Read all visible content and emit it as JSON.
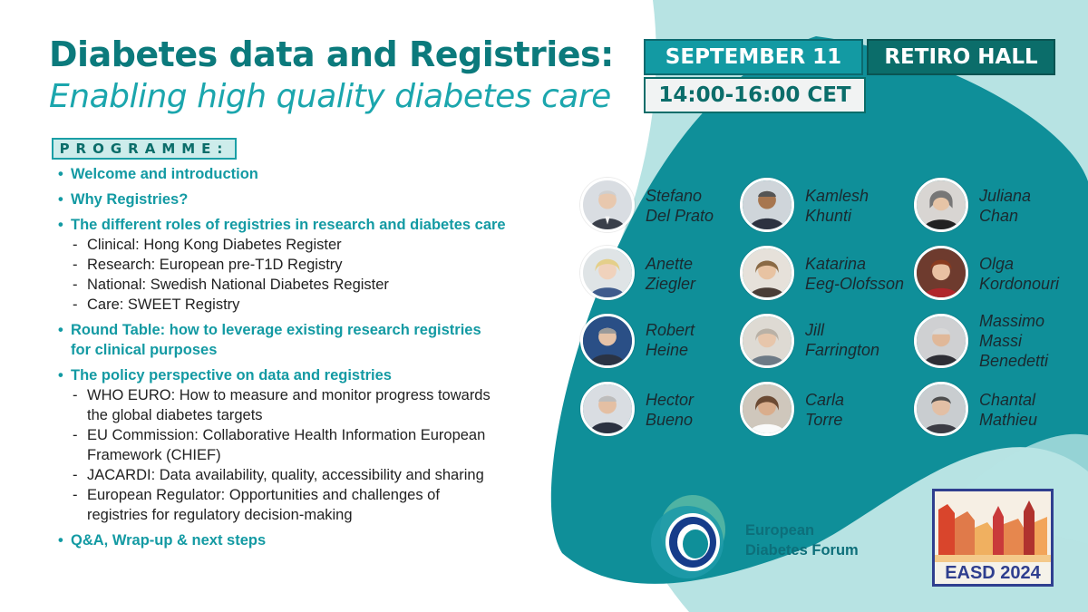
{
  "title": {
    "line1": "Diabetes data and Registries:",
    "line2": "Enabling high quality diabetes care"
  },
  "event": {
    "date": "SEPTEMBER 11",
    "hall": "RETIRO HALL",
    "time": "14:00-16:00 CET"
  },
  "programme": {
    "label": "PROGRAMME:",
    "items": [
      {
        "text": "Welcome and introduction",
        "subs": []
      },
      {
        "text": "Why Registries?",
        "subs": []
      },
      {
        "text": "The different roles of registries in research and diabetes care",
        "subs": [
          "Clinical: Hong Kong Diabetes Register",
          "Research: European pre-T1D Registry",
          "National: Swedish National Diabetes Register",
          "Care: SWEET Registry"
        ]
      },
      {
        "text": "Round Table: how to leverage existing research registries",
        "text2": "for clinical purposes",
        "subs": []
      },
      {
        "text": "The policy perspective on data and registries",
        "subs": [
          "WHO EURO: How to measure and monitor progress towards",
          "the global diabetes targets",
          "EU Commission: Collaborative Health Information European",
          "Framework (CHIEF)",
          "JACARDI: Data availability, quality, accessibility and sharing",
          "European Regulator: Opportunities and challenges of",
          "registries for regulatory decision-making"
        ]
      },
      {
        "text": "Q&A, Wrap-up & next steps",
        "subs": []
      }
    ]
  },
  "speakers": [
    {
      "line1": "Stefano",
      "line2": "Del Prato"
    },
    {
      "line1": "Kamlesh",
      "line2": "Khunti"
    },
    {
      "line1": "Juliana",
      "line2": "Chan"
    },
    {
      "line1": "Anette",
      "line2": "Ziegler"
    },
    {
      "line1": "Katarina",
      "line2": "Eeg-Olofsson"
    },
    {
      "line1": "Olga",
      "line2": "Kordonouri"
    },
    {
      "line1": "Robert",
      "line2": "Heine"
    },
    {
      "line1": "Jill",
      "line2": "Farrington"
    },
    {
      "line1": "Massimo",
      "line2": "Massi",
      "line3": "Benedetti"
    },
    {
      "line1": "Hector",
      "line2": "Bueno"
    },
    {
      "line1": "Carla",
      "line2": "Torre"
    },
    {
      "line1": "Chantal",
      "line2": "Mathieu"
    }
  ],
  "forum": {
    "line1": "European",
    "line2": "Diabetes Forum"
  },
  "easd": {
    "label": "EASD 2024"
  },
  "colors": {
    "teal_dark": "#0b6d6a",
    "teal": "#139aa3",
    "teal_light": "#b7e3e3",
    "easd_blue": "#2f3f8f"
  }
}
